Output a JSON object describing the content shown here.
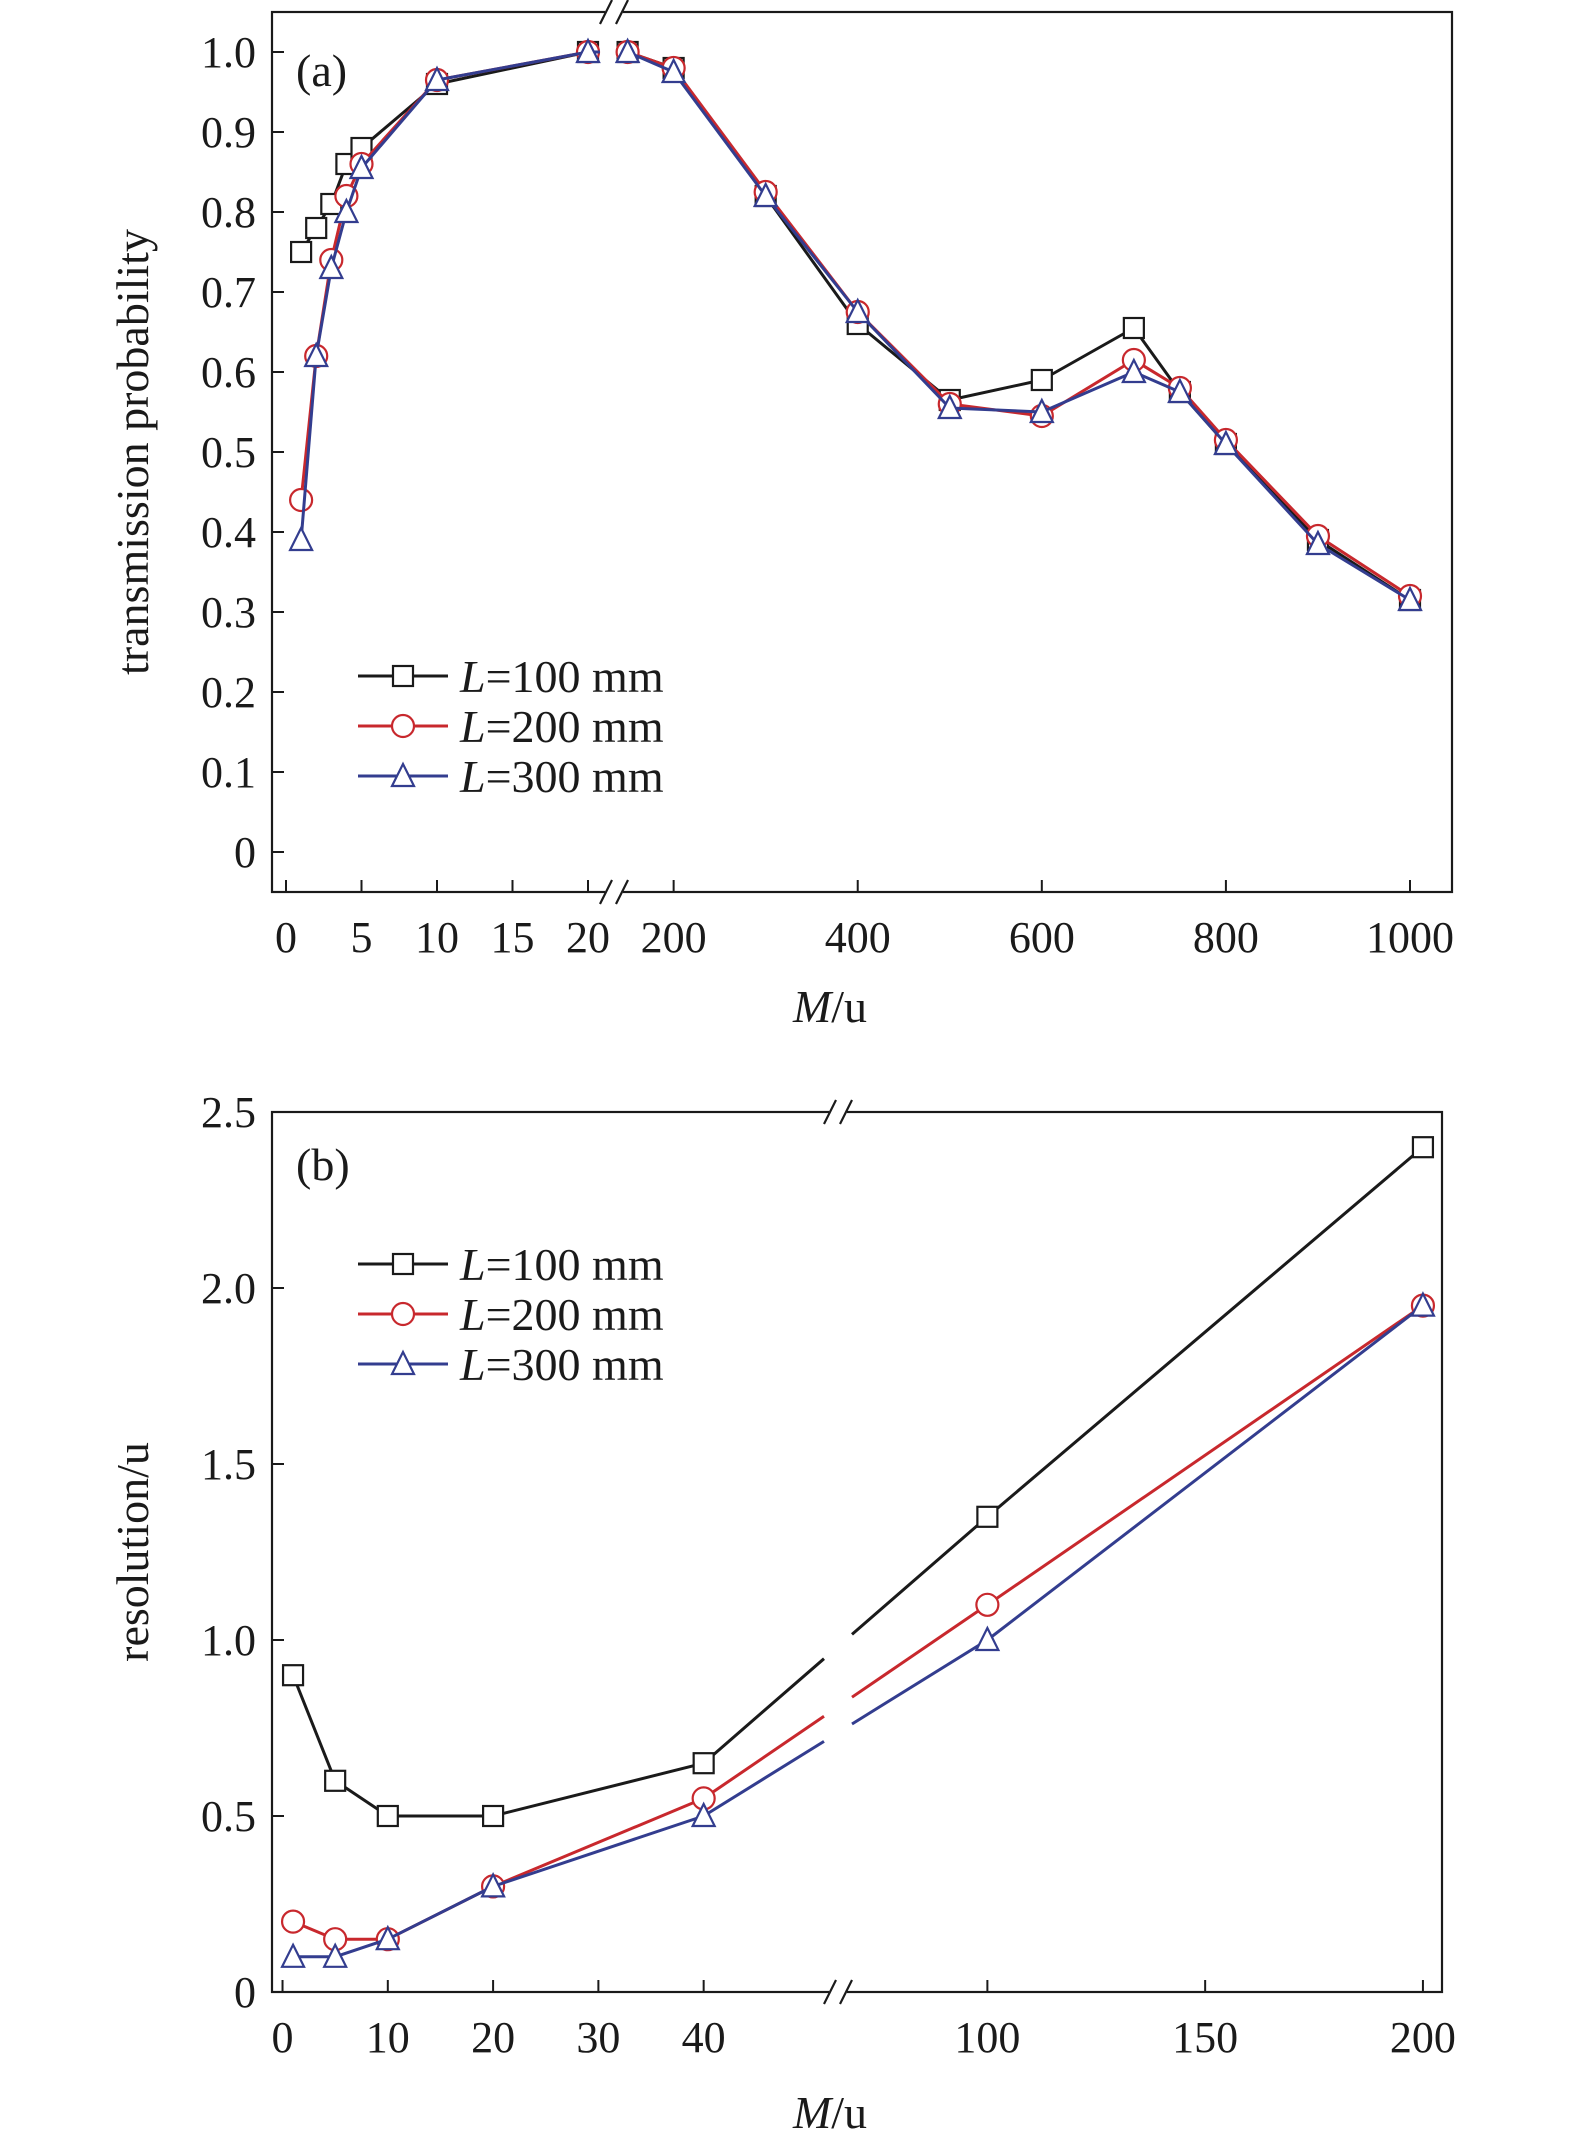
{
  "chart_data": [
    {
      "type": "line",
      "panel_label": "(a)",
      "xlabel": {
        "var": "M",
        "unit": "/u"
      },
      "ylabel": "transmission probability",
      "ylim": [
        0,
        1.0
      ],
      "y_ticks": [
        "0",
        "0.1",
        "0.2",
        "0.3",
        "0.4",
        "0.5",
        "0.6",
        "0.7",
        "0.8",
        "0.9",
        "1.0"
      ],
      "x_segments": [
        {
          "range": [
            0,
            20
          ],
          "ticks": [
            "0",
            "5",
            "10",
            "15",
            "20"
          ]
        },
        {
          "range": [
            120,
            1000
          ],
          "ticks": [
            "200",
            "400",
            "600",
            "800",
            "1000"
          ]
        }
      ],
      "x_break": true,
      "legend": [
        {
          "var": "L",
          "rest": "=100 mm"
        },
        {
          "var": "L",
          "rest": "=200 mm"
        },
        {
          "var": "L",
          "rest": "=300 mm"
        }
      ],
      "series": [
        {
          "color": "#1a1a1a",
          "marker": "square",
          "x": [
            1,
            2,
            3,
            4,
            5,
            10,
            20,
            150,
            200,
            300,
            400,
            500,
            600,
            700,
            750,
            800,
            900,
            1000
          ],
          "y": [
            0.75,
            0.78,
            0.81,
            0.86,
            0.88,
            0.96,
            1.0,
            1.0,
            0.98,
            0.82,
            0.66,
            0.565,
            0.59,
            0.655,
            0.575,
            0.51,
            0.39,
            0.315
          ]
        },
        {
          "color": "#c8282d",
          "marker": "circle",
          "x": [
            1,
            2,
            3,
            4,
            5,
            10,
            20,
            150,
            200,
            300,
            400,
            500,
            600,
            700,
            750,
            800,
            900,
            1000
          ],
          "y": [
            0.44,
            0.62,
            0.74,
            0.82,
            0.86,
            0.965,
            1.0,
            1.0,
            0.98,
            0.825,
            0.675,
            0.56,
            0.545,
            0.615,
            0.58,
            0.515,
            0.395,
            0.32
          ]
        },
        {
          "color": "#333d8f",
          "marker": "triangle",
          "x": [
            1,
            2,
            3,
            4,
            5,
            10,
            20,
            150,
            200,
            300,
            400,
            500,
            600,
            700,
            750,
            800,
            900,
            1000
          ],
          "y": [
            0.39,
            0.62,
            0.73,
            0.8,
            0.855,
            0.965,
            1.0,
            1.0,
            0.975,
            0.82,
            0.675,
            0.555,
            0.55,
            0.6,
            0.575,
            0.51,
            0.385,
            0.315
          ]
        }
      ]
    },
    {
      "type": "line",
      "panel_label": "(b)",
      "xlabel": {
        "var": "M",
        "unit": "/u"
      },
      "ylabel": "resolution/u",
      "ylim": [
        0,
        2.5
      ],
      "y_ticks": [
        "0",
        "0.5",
        "1.0",
        "1.5",
        "2.0",
        "2.5"
      ],
      "x_segments": [
        {
          "range": [
            -1,
            52
          ],
          "ticks": [
            "0",
            "10",
            "20",
            "30",
            "40"
          ]
        },
        {
          "range": [
            68,
            203
          ],
          "ticks": [
            "100",
            "150",
            "200"
          ]
        }
      ],
      "x_break": true,
      "legend": [
        {
          "var": "L",
          "rest": "=100 mm"
        },
        {
          "var": "L",
          "rest": "=200 mm"
        },
        {
          "var": "L",
          "rest": "=300 mm"
        }
      ],
      "series": [
        {
          "color": "#1a1a1a",
          "marker": "square",
          "x": [
            1,
            5,
            10,
            20,
            40,
            100,
            200
          ],
          "y": [
            0.9,
            0.6,
            0.5,
            0.5,
            0.65,
            1.35,
            2.4
          ]
        },
        {
          "color": "#c8282d",
          "marker": "circle",
          "x": [
            1,
            5,
            10,
            20,
            40,
            100,
            200
          ],
          "y": [
            0.2,
            0.15,
            0.15,
            0.3,
            0.55,
            1.1,
            1.95
          ]
        },
        {
          "color": "#333d8f",
          "marker": "triangle",
          "x": [
            1,
            5,
            10,
            20,
            40,
            100,
            200
          ],
          "y": [
            0.1,
            0.1,
            0.15,
            0.3,
            0.5,
            1.0,
            1.95
          ]
        }
      ]
    }
  ]
}
